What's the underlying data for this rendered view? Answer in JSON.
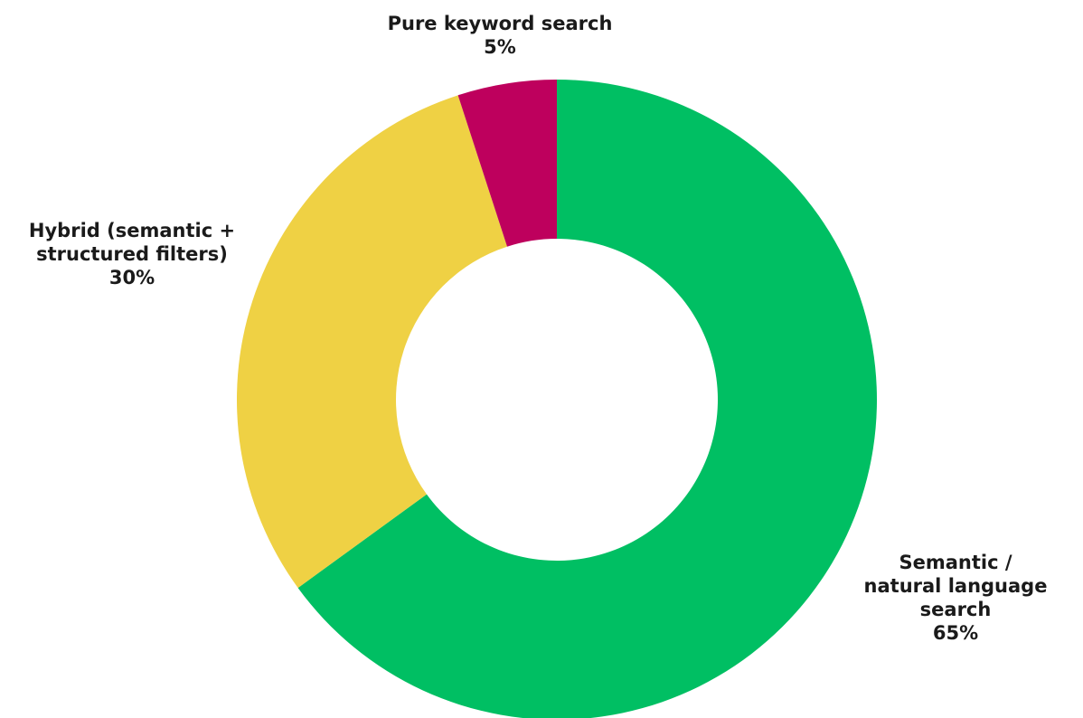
{
  "chart_data": {
    "type": "pie",
    "variant": "donut",
    "slices": [
      {
        "label": "Semantic / natural language search",
        "label_lines": [
          "Semantic /",
          "natural language",
          "search"
        ],
        "value_label": "65%",
        "value": 65,
        "color": "#00BF63"
      },
      {
        "label": "Hybrid (semantic + structured filters)",
        "label_lines": [
          "Hybrid (semantic +",
          "structured filters)"
        ],
        "value_label": "30%",
        "value": 30,
        "color": "#EFD144"
      },
      {
        "label": "Pure keyword search",
        "label_lines": [
          "Pure keyword search"
        ],
        "value_label": "5%",
        "value": 5,
        "color": "#BE005D"
      }
    ],
    "start": "12 o'clock",
    "direction": "clockwise",
    "legend": "none",
    "labels": "outside"
  }
}
